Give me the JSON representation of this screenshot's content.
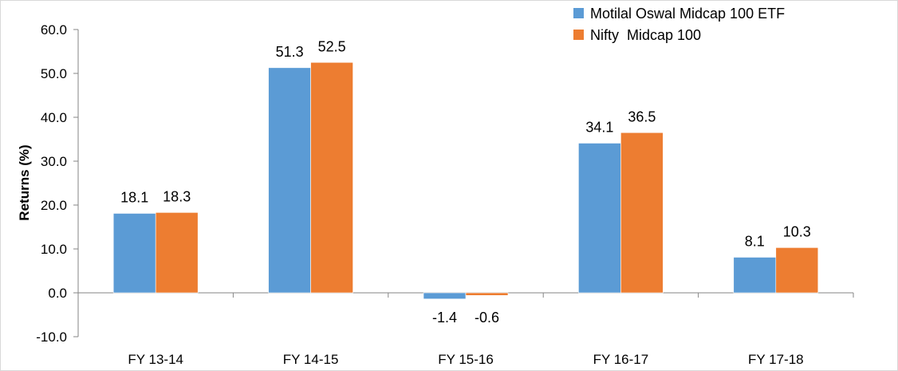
{
  "chart_data": {
    "type": "bar",
    "categories": [
      "FY 13-14",
      "FY 14-15",
      "FY 15-16",
      "FY 16-17",
      "FY 17-18"
    ],
    "series": [
      {
        "name": "Motilal Oswal Midcap 100 ETF",
        "values": [
          18.1,
          51.3,
          -1.4,
          34.1,
          8.1
        ],
        "color": "#5B9BD5"
      },
      {
        "name": "Nifty  Midcap 100",
        "values": [
          18.3,
          52.5,
          -0.6,
          36.5,
          10.3
        ],
        "color": "#ED7D31"
      }
    ],
    "value_labels": [
      [
        "18.1",
        "51.3",
        "-1.4",
        "34.1",
        "8.1"
      ],
      [
        "18.3",
        "52.5",
        "-0.6",
        "36.5",
        "10.3"
      ]
    ],
    "title": "",
    "xlabel": "",
    "ylabel": "Returns (%)",
    "ylim": [
      -10,
      60
    ],
    "yticks": [
      -10,
      0,
      10,
      20,
      30,
      40,
      50,
      60
    ],
    "ytick_labels": [
      "-10.0",
      "0.0",
      "10.0",
      "20.0",
      "30.0",
      "40.0",
      "50.0",
      "60.0"
    ],
    "grid": false,
    "legend_position": "top-right",
    "axis_color": "#868686",
    "border_color": "#D9D9D9"
  }
}
